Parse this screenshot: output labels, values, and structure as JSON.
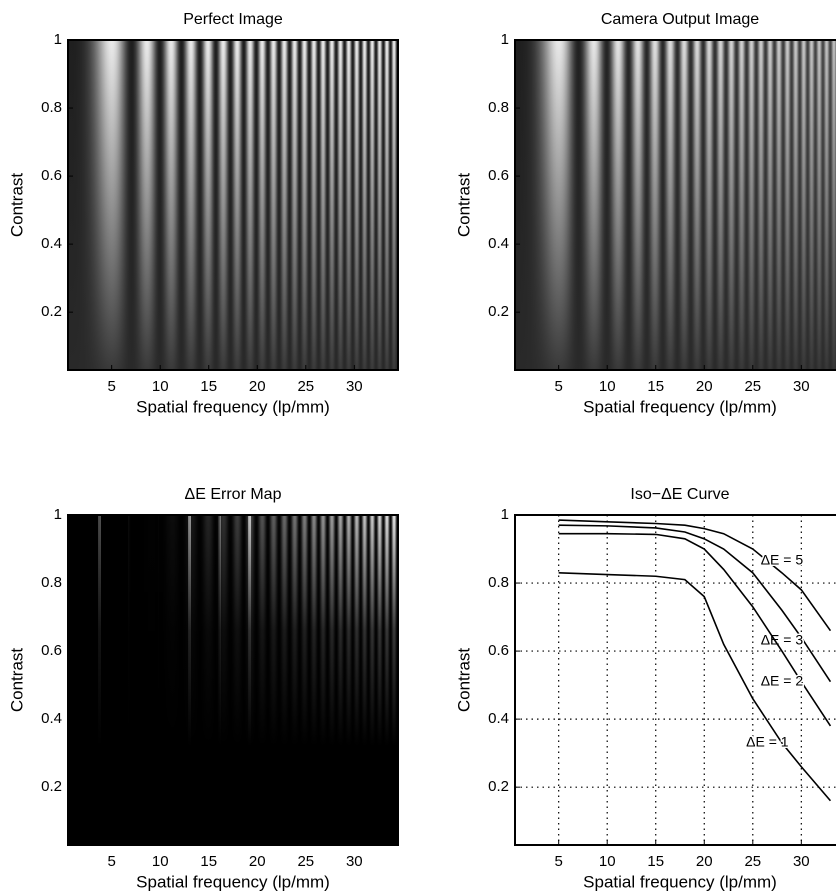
{
  "chart_data": [
    {
      "type": "image",
      "title": "Perfect Image",
      "x_label": "Spatial frequency (lp/mm)",
      "y_label": "Contrast",
      "xlim": [
        0.5,
        34.5
      ],
      "ylim": [
        0.03,
        1
      ],
      "xticks": [
        5,
        10,
        15,
        20,
        25,
        30
      ],
      "yticks": [
        0.2,
        0.4,
        0.6,
        0.8,
        1
      ]
    },
    {
      "type": "image",
      "title": "Camera Output Image",
      "x_label": "Spatial frequency (lp/mm)",
      "y_label": "Contrast",
      "xlim": [
        0.5,
        34.5
      ],
      "ylim": [
        0.03,
        1
      ],
      "xticks": [
        5,
        10,
        15,
        20,
        25,
        30
      ],
      "yticks": [
        0.2,
        0.4,
        0.6,
        0.8,
        1
      ]
    },
    {
      "type": "image",
      "title": "ΔE Error Map",
      "x_label": "Spatial frequency (lp/mm)",
      "y_label": "Contrast",
      "xlim": [
        0.5,
        34.5
      ],
      "ylim": [
        0.03,
        1
      ],
      "xticks": [
        5,
        10,
        15,
        20,
        25,
        30
      ],
      "yticks": [
        0.2,
        0.4,
        0.6,
        0.8,
        1
      ]
    },
    {
      "type": "line",
      "title": "Iso−ΔE Curve",
      "x_label": "Spatial frequency (lp/mm)",
      "y_label": "Contrast",
      "xlim": [
        0.5,
        34.5
      ],
      "ylim": [
        0.03,
        1
      ],
      "xticks": [
        5,
        10,
        15,
        20,
        25,
        30
      ],
      "yticks": [
        0.2,
        0.4,
        0.6,
        0.8,
        1
      ],
      "grid": true,
      "x": [
        5,
        10,
        15,
        18,
        20,
        22,
        25,
        28,
        30,
        33
      ],
      "series": [
        {
          "name": "ΔE = 5",
          "color": "#000000",
          "values": [
            0.985,
            0.98,
            0.975,
            0.97,
            0.96,
            0.945,
            0.9,
            0.83,
            0.78,
            0.66
          ]
        },
        {
          "name": "ΔE = 3",
          "color": "#000000",
          "values": [
            0.97,
            0.968,
            0.962,
            0.95,
            0.93,
            0.9,
            0.83,
            0.72,
            0.64,
            0.51
          ]
        },
        {
          "name": "ΔE = 2",
          "color": "#000000",
          "values": [
            0.945,
            0.945,
            0.943,
            0.93,
            0.9,
            0.84,
            0.73,
            0.6,
            0.51,
            0.38
          ]
        },
        {
          "name": "ΔE = 1",
          "color": "#000000",
          "values": [
            0.83,
            0.825,
            0.82,
            0.81,
            0.76,
            0.62,
            0.46,
            0.33,
            0.26,
            0.16
          ]
        }
      ]
    }
  ]
}
